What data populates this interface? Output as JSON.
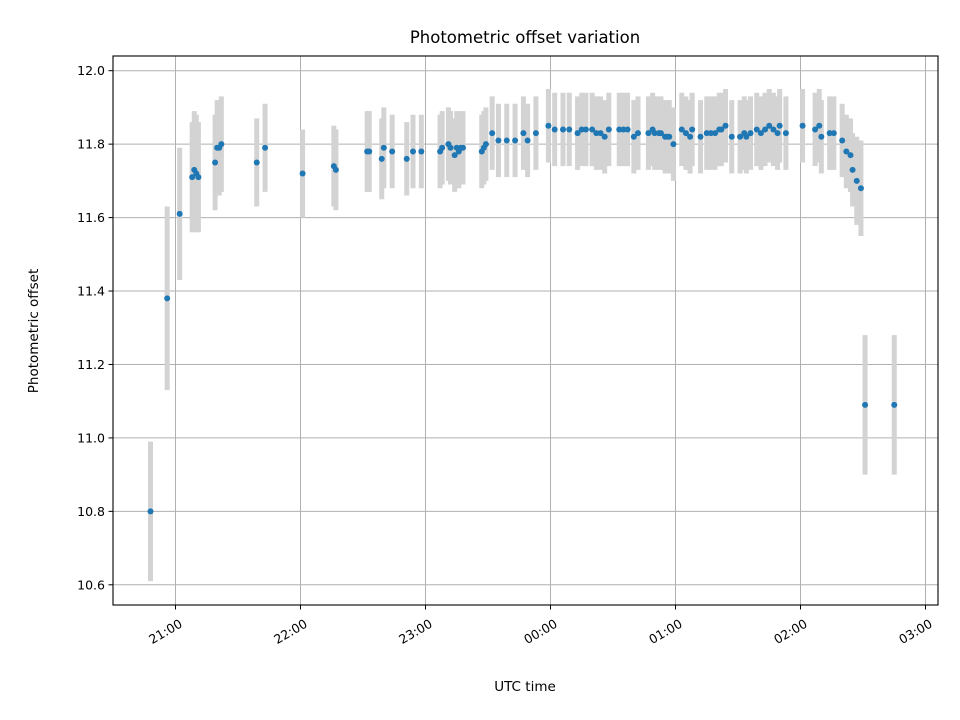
{
  "chart_data": {
    "type": "scatter",
    "title": "Photometric offset variation",
    "xlabel": "UTC time",
    "ylabel": "Photometric offset",
    "x_range_hours": [
      20.5,
      27.1
    ],
    "ylim": [
      10.545,
      12.04
    ],
    "x_ticks": [
      "21:00",
      "22:00",
      "23:00",
      "00:00",
      "01:00",
      "02:00",
      "03:00"
    ],
    "y_ticks": [
      "10.6",
      "10.8",
      "11.0",
      "11.2",
      "11.4",
      "11.6",
      "11.8",
      "12.0"
    ],
    "grid": true,
    "colors": {
      "point": "#1f77b4",
      "errorbar": "#d3d3d3",
      "grid": "#b0b0b0"
    },
    "series": [
      {
        "x": [
          "20:48",
          "20:56",
          "21:02",
          "21:08",
          "21:09",
          "21:10",
          "21:11",
          "21:19",
          "21:20",
          "21:21",
          "21:22",
          "21:39",
          "21:43",
          "22:01",
          "22:16",
          "22:17",
          "22:32",
          "22:33",
          "22:39",
          "22:40",
          "22:44",
          "22:51",
          "22:54",
          "22:58",
          "23:07",
          "23:08",
          "23:11",
          "23:12",
          "23:14",
          "23:15",
          "23:16",
          "23:17",
          "23:18",
          "23:27",
          "23:28",
          "23:29",
          "23:32",
          "23:35",
          "23:39",
          "23:43",
          "23:47",
          "23:49",
          "23:53",
          "23:59",
          "00:02",
          "00:06",
          "00:09",
          "00:13",
          "00:15",
          "00:17",
          "00:20",
          "00:22",
          "00:24",
          "00:26",
          "00:28",
          "00:33",
          "00:35",
          "00:37",
          "00:40",
          "00:42",
          "00:47",
          "00:49",
          "00:50",
          "00:52",
          "00:53",
          "00:55",
          "00:56",
          "00:57",
          "00:59",
          "01:03",
          "01:05",
          "01:07",
          "01:08",
          "01:12",
          "01:15",
          "01:17",
          "01:19",
          "01:21",
          "01:22",
          "01:24",
          "01:27",
          "01:31",
          "01:33",
          "01:34",
          "01:36",
          "01:39",
          "01:41",
          "01:43",
          "01:45",
          "01:47",
          "01:49",
          "01:50",
          "01:53",
          "02:01",
          "02:07",
          "02:09",
          "02:10",
          "02:14",
          "02:16",
          "02:20",
          "02:22",
          "02:24",
          "02:25",
          "02:27",
          "02:29",
          "02:31",
          "02:45"
        ],
        "y": [
          10.8,
          11.38,
          11.61,
          11.71,
          11.73,
          11.72,
          11.71,
          11.75,
          11.79,
          11.79,
          11.8,
          11.75,
          11.79,
          11.72,
          11.74,
          11.73,
          11.78,
          11.78,
          11.76,
          11.79,
          11.78,
          11.76,
          11.78,
          11.78,
          11.78,
          11.79,
          11.8,
          11.79,
          11.77,
          11.79,
          11.78,
          11.79,
          11.79,
          11.78,
          11.79,
          11.8,
          11.83,
          11.81,
          11.81,
          11.81,
          11.83,
          11.81,
          11.83,
          11.85,
          11.84,
          11.84,
          11.84,
          11.83,
          11.84,
          11.84,
          11.84,
          11.83,
          11.83,
          11.82,
          11.84,
          11.84,
          11.84,
          11.84,
          11.82,
          11.83,
          11.83,
          11.84,
          11.83,
          11.83,
          11.83,
          11.82,
          11.82,
          11.82,
          11.8,
          11.84,
          11.83,
          11.82,
          11.84,
          11.82,
          11.83,
          11.83,
          11.83,
          11.84,
          11.84,
          11.85,
          11.82,
          11.82,
          11.83,
          11.82,
          11.83,
          11.84,
          11.83,
          11.84,
          11.85,
          11.84,
          11.83,
          11.85,
          11.83,
          11.85,
          11.84,
          11.85,
          11.82,
          11.83,
          11.83,
          11.81,
          11.78,
          11.77,
          11.73,
          11.7,
          11.68,
          11.09,
          11.09
        ],
        "err": [
          0.19,
          0.25,
          0.18,
          0.15,
          0.16,
          0.16,
          0.15,
          0.13,
          0.13,
          0.13,
          0.13,
          0.12,
          0.12,
          0.12,
          0.11,
          0.11,
          0.11,
          0.11,
          0.11,
          0.11,
          0.1,
          0.1,
          0.1,
          0.1,
          0.1,
          0.1,
          0.1,
          0.1,
          0.1,
          0.1,
          0.1,
          0.1,
          0.1,
          0.1,
          0.1,
          0.1,
          0.1,
          0.1,
          0.1,
          0.1,
          0.1,
          0.1,
          0.1,
          0.1,
          0.1,
          0.1,
          0.1,
          0.1,
          0.1,
          0.1,
          0.1,
          0.1,
          0.1,
          0.1,
          0.1,
          0.1,
          0.1,
          0.1,
          0.1,
          0.1,
          0.1,
          0.1,
          0.1,
          0.1,
          0.1,
          0.1,
          0.1,
          0.1,
          0.1,
          0.1,
          0.1,
          0.1,
          0.1,
          0.1,
          0.1,
          0.1,
          0.1,
          0.1,
          0.1,
          0.1,
          0.1,
          0.1,
          0.1,
          0.1,
          0.1,
          0.1,
          0.1,
          0.1,
          0.1,
          0.1,
          0.1,
          0.1,
          0.1,
          0.1,
          0.1,
          0.1,
          0.1,
          0.1,
          0.1,
          0.1,
          0.1,
          0.1,
          0.1,
          0.12,
          0.13,
          0.19,
          0.19
        ]
      }
    ]
  }
}
